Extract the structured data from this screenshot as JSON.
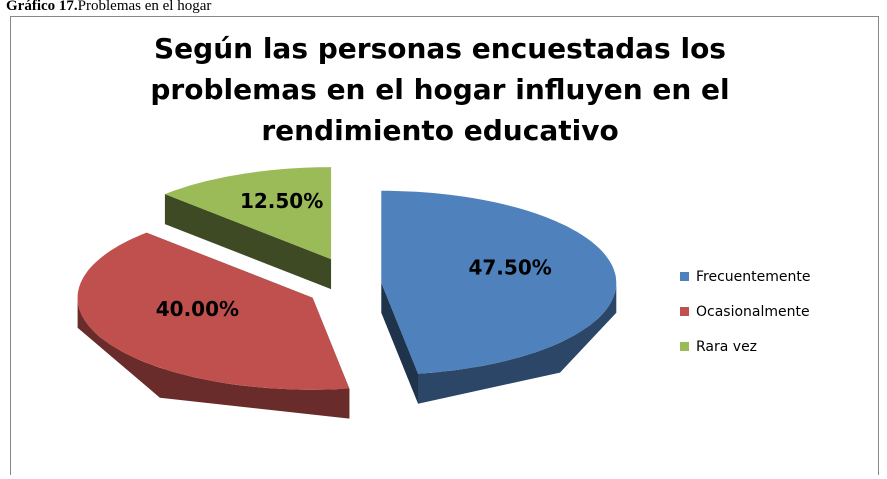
{
  "caption": {
    "label": "Gráfico 17.",
    "text": "Problemas en el hogar"
  },
  "chart_data": {
    "type": "pie",
    "title": [
      "Según las personas encuestadas los",
      "problemas en el hogar influyen en el",
      "rendimiento educativo"
    ],
    "categories": [
      "Frecuentemente",
      "Ocasionalmente",
      "Rara vez"
    ],
    "values": [
      47.5,
      40,
      12.5
    ],
    "value_labels": [
      "47.50%",
      "40.00%",
      "12.50%"
    ],
    "colors": [
      "#4f81bd",
      "#c0504d",
      "#9bbb59"
    ],
    "legend": "right"
  }
}
